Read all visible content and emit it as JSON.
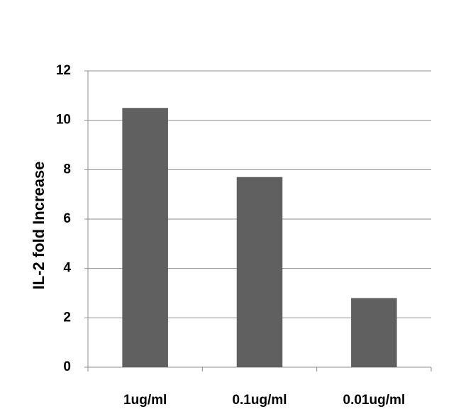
{
  "chart_data": {
    "type": "bar",
    "y_label": "IL-2 fold Increase",
    "categories": [
      "1ug/ml",
      "0.1ug/ml",
      "0.01ug/ml"
    ],
    "values": [
      10.5,
      7.7,
      2.8
    ],
    "color": "#606060",
    "ylim": [
      0,
      12
    ],
    "yticks": [
      0,
      2,
      4,
      6,
      8,
      10,
      12
    ],
    "grid": true
  }
}
